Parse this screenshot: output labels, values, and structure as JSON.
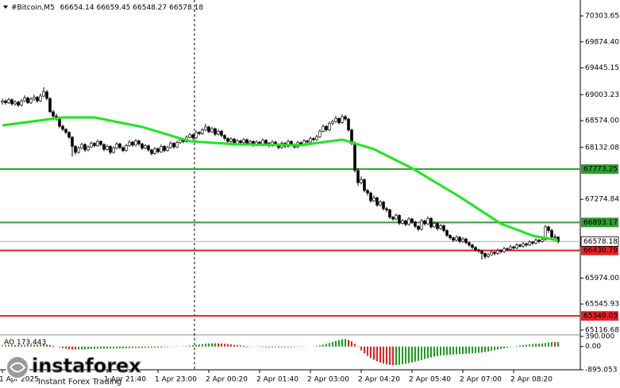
{
  "chart_data": {
    "type": "candlestick",
    "symbol": "#Bitcoin,M5",
    "xlim": [
      -0.75,
      182
    ],
    "ylim": [
      65050,
      70566
    ],
    "separator": 61,
    "xticks": [
      {
        "value": 0,
        "label": "1 Apr 2025"
      },
      {
        "value": 33,
        "label": "1 Apr 21:40"
      },
      {
        "value": 49,
        "label": "1 Apr 23:00"
      },
      {
        "value": 65,
        "label": "2 Apr 00:20"
      },
      {
        "value": 81,
        "label": "2 Apr 01:40"
      },
      {
        "value": 97,
        "label": "2 Apr 03:00"
      },
      {
        "value": 113,
        "label": "2 Apr 04:20"
      },
      {
        "value": 129,
        "label": "2 Apr 05:40"
      },
      {
        "value": 145,
        "label": "2 Apr 07:00"
      },
      {
        "value": 161,
        "label": "2 Apr 08:20"
      }
    ],
    "yticks": [
      70303.65,
      {
        "value": 69874.4,
        "label": "69874.40"
      },
      69445.15,
      69003.23,
      {
        "value": 68574,
        "label": "68574.00"
      },
      68132.08,
      67274.84,
      {
        "value": 65974,
        "label": "65974.00"
      },
      65545.93,
      65116.68
    ],
    "levels": [
      {
        "value": 67773.25,
        "color": "#2e9e2e"
      },
      {
        "value": 66893.17,
        "color": "#2e9e2e"
      },
      {
        "value": 66430.79,
        "color": "#e52222"
      },
      {
        "value": 65349.03,
        "color": "#e52222"
      }
    ],
    "ma": {
      "color": "#1ee61e",
      "x": [
        0,
        19,
        29,
        44,
        59,
        74,
        94,
        107,
        117,
        129,
        144,
        157,
        167,
        175
      ],
      "values": [
        68496,
        68627,
        68627,
        68470,
        68234,
        68182,
        68169,
        68261,
        68103,
        67789,
        67317,
        66872,
        66675,
        66597
      ]
    },
    "candles": [
      [
        68880,
        68940,
        68840,
        68900
      ],
      [
        68900,
        68930,
        68840,
        68870
      ],
      [
        68870,
        68950,
        68850,
        68920
      ],
      [
        68920,
        68940,
        68820,
        68850
      ],
      [
        68850,
        68910,
        68820,
        68880
      ],
      [
        68880,
        68900,
        68800,
        68830
      ],
      [
        68830,
        68930,
        68810,
        68900
      ],
      [
        68900,
        68990,
        68880,
        68950
      ],
      [
        68950,
        68970,
        68850,
        68870
      ],
      [
        68870,
        68960,
        68850,
        68930
      ],
      [
        68930,
        69000,
        68900,
        68960
      ],
      [
        68960,
        68980,
        68870,
        68900
      ],
      [
        68900,
        69020,
        68880,
        68980
      ],
      [
        68980,
        69125,
        68960,
        69050
      ],
      [
        69050,
        69080,
        68910,
        68940
      ],
      [
        68940,
        68960,
        68700,
        68720
      ],
      [
        68720,
        68750,
        68620,
        68650
      ],
      [
        68650,
        68690,
        68570,
        68600
      ],
      [
        68600,
        68620,
        68450,
        68480
      ],
      [
        68480,
        68510,
        68400,
        68430
      ],
      [
        68430,
        68450,
        68350,
        68380
      ],
      [
        68380,
        68400,
        68270,
        68300
      ],
      [
        68300,
        68320,
        67980,
        68150
      ],
      [
        68150,
        68170,
        68010,
        68050
      ],
      [
        68050,
        68150,
        68030,
        68120
      ],
      [
        68120,
        68210,
        68100,
        68180
      ],
      [
        68180,
        68200,
        68060,
        68090
      ],
      [
        68090,
        68170,
        68070,
        68140
      ],
      [
        68140,
        68230,
        68120,
        68200
      ],
      [
        68200,
        68220,
        68130,
        68160
      ],
      [
        68160,
        68260,
        68140,
        68230
      ],
      [
        68230,
        68250,
        68150,
        68180
      ],
      [
        68180,
        68200,
        68070,
        68100
      ],
      [
        68100,
        68180,
        68080,
        68150
      ],
      [
        68150,
        68170,
        68020,
        68050
      ],
      [
        68050,
        68150,
        68030,
        68120
      ],
      [
        68120,
        68220,
        68100,
        68190
      ],
      [
        68190,
        68210,
        68100,
        68130
      ],
      [
        68130,
        68150,
        68050,
        68080
      ],
      [
        68080,
        68190,
        68060,
        68160
      ],
      [
        68160,
        68250,
        68140,
        68220
      ],
      [
        68220,
        68240,
        68140,
        68170
      ],
      [
        68170,
        68270,
        68150,
        68240
      ],
      [
        68240,
        68260,
        68160,
        68190
      ],
      [
        68190,
        68210,
        68090,
        68120
      ],
      [
        68120,
        68190,
        68100,
        68160
      ],
      [
        68160,
        68180,
        68060,
        68090
      ],
      [
        68090,
        68110,
        68000,
        68030
      ],
      [
        68030,
        68140,
        68010,
        68110
      ],
      [
        68110,
        68130,
        68030,
        68060
      ],
      [
        68060,
        68180,
        68040,
        68150
      ],
      [
        68150,
        68170,
        68050,
        68080
      ],
      [
        68080,
        68160,
        68060,
        68130
      ],
      [
        68130,
        68230,
        68110,
        68200
      ],
      [
        68200,
        68220,
        68110,
        68140
      ],
      [
        68140,
        68240,
        68120,
        68210
      ],
      [
        68210,
        68290,
        68190,
        68260
      ],
      [
        68260,
        68280,
        68200,
        68230
      ],
      [
        68230,
        68330,
        68210,
        68300
      ],
      [
        68300,
        68370,
        68280,
        68340
      ],
      [
        68340,
        68360,
        68260,
        68290
      ],
      [
        68290,
        68410,
        68270,
        68380
      ],
      [
        68380,
        68400,
        68330,
        68360
      ],
      [
        68360,
        68450,
        68340,
        68420
      ],
      [
        68420,
        68520,
        68400,
        68470
      ],
      [
        68470,
        68490,
        68370,
        68390
      ],
      [
        68390,
        68470,
        68370,
        68440
      ],
      [
        68440,
        68460,
        68320,
        68350
      ],
      [
        68350,
        68430,
        68330,
        68400
      ],
      [
        68400,
        68420,
        68300,
        68330
      ],
      [
        68330,
        68350,
        68250,
        68280
      ],
      [
        68280,
        68300,
        68200,
        68230
      ],
      [
        68230,
        68300,
        68210,
        68270
      ],
      [
        68270,
        68290,
        68160,
        68190
      ],
      [
        68190,
        68270,
        68170,
        68240
      ],
      [
        68240,
        68260,
        68180,
        68210
      ],
      [
        68210,
        68290,
        68190,
        68260
      ],
      [
        68260,
        68280,
        68170,
        68200
      ],
      [
        68200,
        68260,
        68180,
        68230
      ],
      [
        68230,
        68250,
        68140,
        68170
      ],
      [
        68170,
        68250,
        68150,
        68220
      ],
      [
        68220,
        68240,
        68160,
        68190
      ],
      [
        68190,
        68280,
        68170,
        68250
      ],
      [
        68250,
        68270,
        68180,
        68200
      ],
      [
        68200,
        68220,
        68130,
        68160
      ],
      [
        68160,
        68250,
        68140,
        68220
      ],
      [
        68220,
        68240,
        68150,
        68180
      ],
      [
        68180,
        68200,
        68100,
        68130
      ],
      [
        68130,
        68230,
        68110,
        68200
      ],
      [
        68200,
        68220,
        68120,
        68150
      ],
      [
        68150,
        68260,
        68130,
        68230
      ],
      [
        68230,
        68250,
        68150,
        68180
      ],
      [
        68180,
        68200,
        68110,
        68140
      ],
      [
        68140,
        68240,
        68120,
        68210
      ],
      [
        68210,
        68230,
        68160,
        68190
      ],
      [
        68190,
        68270,
        68170,
        68240
      ],
      [
        68240,
        68260,
        68190,
        68220
      ],
      [
        68220,
        68310,
        68200,
        68280
      ],
      [
        68280,
        68300,
        68230,
        68260
      ],
      [
        68260,
        68340,
        68240,
        68310
      ],
      [
        68310,
        68430,
        68290,
        68400
      ],
      [
        68400,
        68510,
        68380,
        68480
      ],
      [
        68480,
        68500,
        68390,
        68420
      ],
      [
        68420,
        68560,
        68400,
        68530
      ],
      [
        68530,
        68590,
        68500,
        68560
      ],
      [
        68560,
        68650,
        68540,
        68610
      ],
      [
        68610,
        68630,
        68510,
        68540
      ],
      [
        68540,
        68680,
        68520,
        68640
      ],
      [
        68640,
        68670,
        68570,
        68600
      ],
      [
        68600,
        68620,
        68390,
        68420
      ],
      [
        68420,
        68440,
        68170,
        68200
      ],
      [
        68200,
        68230,
        67720,
        67750
      ],
      [
        67750,
        67790,
        67500,
        67550
      ],
      [
        67550,
        67650,
        67520,
        67600
      ],
      [
        67600,
        67620,
        67390,
        67420
      ],
      [
        67420,
        67450,
        67340,
        67380
      ],
      [
        67380,
        67400,
        67220,
        67250
      ],
      [
        67250,
        67340,
        67230,
        67300
      ],
      [
        67300,
        67320,
        67150,
        67180
      ],
      [
        67180,
        67260,
        67160,
        67230
      ],
      [
        67230,
        67250,
        67090,
        67120
      ],
      [
        67120,
        67150,
        67060,
        67100
      ],
      [
        67100,
        67120,
        66950,
        66980
      ],
      [
        66980,
        67000,
        66920,
        66950
      ],
      [
        66950,
        67040,
        66930,
        67010
      ],
      [
        67010,
        67030,
        66850,
        66880
      ],
      [
        66880,
        66950,
        66860,
        66920
      ],
      [
        66920,
        66940,
        66830,
        66860
      ],
      [
        66860,
        66980,
        66840,
        66950
      ],
      [
        66950,
        66970,
        66870,
        66900
      ],
      [
        66900,
        66920,
        66800,
        66830
      ],
      [
        66830,
        66850,
        66750,
        66780
      ],
      [
        66780,
        66950,
        66760,
        66920
      ],
      [
        66920,
        66940,
        66840,
        66870
      ],
      [
        66870,
        66990,
        66850,
        66960
      ],
      [
        66960,
        66980,
        66790,
        66820
      ],
      [
        66820,
        66910,
        66800,
        66880
      ],
      [
        66880,
        66900,
        66760,
        66790
      ],
      [
        66790,
        66870,
        66770,
        66840
      ],
      [
        66840,
        66860,
        66730,
        66760
      ],
      [
        66760,
        66780,
        66650,
        66680
      ],
      [
        66680,
        66700,
        66610,
        66640
      ],
      [
        66640,
        66660,
        66570,
        66600
      ],
      [
        66600,
        66680,
        66580,
        66650
      ],
      [
        66650,
        66670,
        66550,
        66580
      ],
      [
        66580,
        66650,
        66560,
        66620
      ],
      [
        66620,
        66640,
        66530,
        66560
      ],
      [
        66560,
        66580,
        66490,
        66520
      ],
      [
        66520,
        66540,
        66450,
        66480
      ],
      [
        66480,
        66500,
        66410,
        66440
      ],
      [
        66440,
        66460,
        66390,
        66420
      ],
      [
        66420,
        66440,
        66280,
        66380
      ],
      [
        66380,
        66400,
        66290,
        66330
      ],
      [
        66330,
        66390,
        66310,
        66360
      ],
      [
        66360,
        66430,
        66340,
        66400
      ],
      [
        66400,
        66420,
        66350,
        66380
      ],
      [
        66380,
        66460,
        66360,
        66430
      ],
      [
        66430,
        66450,
        66380,
        66410
      ],
      [
        66410,
        66490,
        66390,
        66460
      ],
      [
        66460,
        66480,
        66420,
        66450
      ],
      [
        66450,
        66520,
        66430,
        66490
      ],
      [
        66490,
        66510,
        66440,
        66470
      ],
      [
        66470,
        66550,
        66450,
        66520
      ],
      [
        66520,
        66540,
        66480,
        66500
      ],
      [
        66500,
        66570,
        66480,
        66540
      ],
      [
        66540,
        66560,
        66490,
        66520
      ],
      [
        66520,
        66600,
        66500,
        66570
      ],
      [
        66570,
        66590,
        66520,
        66550
      ],
      [
        66550,
        66630,
        66530,
        66600
      ],
      [
        66600,
        66620,
        66550,
        66580
      ],
      [
        66580,
        66640,
        66560,
        66610
      ],
      [
        66610,
        66850,
        66590,
        66820
      ],
      [
        66820,
        66840,
        66720,
        66760
      ],
      [
        66760,
        66790,
        66620,
        66650
      ],
      [
        66650,
        66700,
        66590,
        66654.14
      ],
      [
        66654.14,
        66659.45,
        66548.27,
        66578.18
      ]
    ],
    "indicator": {
      "name": "AO",
      "ylim": [
        -895.053,
        390
      ],
      "yticks": [
        {
          "value": 390,
          "label": "390.000"
        },
        {
          "value": 0,
          "label": "0.00"
        },
        -895.053
      ],
      "up_color": "#1e9e1e",
      "down_color": "#e52222",
      "values": [
        40,
        50,
        55,
        60,
        58,
        55,
        60,
        65,
        62,
        66,
        70,
        68,
        75,
        85,
        80,
        60,
        30,
        0,
        -30,
        -60,
        -85,
        -100,
        -115,
        -120,
        -118,
        -110,
        -105,
        -100,
        -95,
        -92,
        -88,
        -85,
        -82,
        -80,
        -78,
        -75,
        -72,
        -70,
        -68,
        -65,
        -60,
        -58,
        -55,
        -50,
        -52,
        -48,
        -45,
        -42,
        -40,
        -35,
        -30,
        -25,
        -20,
        -15,
        -10,
        -5,
        0,
        10,
        20,
        35,
        50,
        65,
        80,
        95,
        110,
        120,
        125,
        128,
        125,
        118,
        108,
        95,
        80,
        65,
        50,
        40,
        30,
        20,
        10,
        0,
        -10,
        -15,
        -20,
        -25,
        -28,
        -30,
        -30,
        -32,
        -30,
        -28,
        -26,
        -24,
        -20,
        -16,
        -12,
        -8,
        -4,
        0,
        10,
        25,
        45,
        70,
        100,
        140,
        180,
        220,
        250,
        280,
        290,
        260,
        200,
        100,
        -20,
        -150,
        -260,
        -360,
        -440,
        -510,
        -570,
        -620,
        -660,
        -690,
        -710,
        -720,
        -715,
        -700,
        -680,
        -660,
        -640,
        -610,
        -580,
        -550,
        -520,
        -480,
        -450,
        -420,
        -390,
        -370,
        -350,
        -340,
        -330,
        -320,
        -310,
        -300,
        -290,
        -285,
        -280,
        -270,
        -260,
        -250,
        -240,
        -230,
        -215,
        -190,
        -165,
        -140,
        -115,
        -90,
        -65,
        -40,
        -20,
        0,
        20,
        40,
        55,
        70,
        85,
        95,
        105,
        115,
        120,
        140,
        160,
        175,
        170,
        173.443
      ]
    }
  },
  "logo": {
    "brand": "instaforex",
    "tagline": "Instant Forex Trading"
  }
}
